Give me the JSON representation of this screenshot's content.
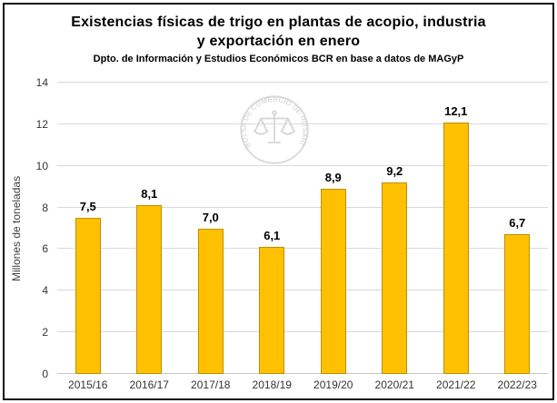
{
  "title": {
    "line1": "Existencias físicas de trigo en plantas de acopio, industria",
    "line2": "y exportación en enero"
  },
  "subtitle": "Dpto. de Información y Estudios Económicos BCR en base a datos de MAGyP",
  "watermark": {
    "text": "BOLSA DE COMERCIO DE ROSARIO"
  },
  "chart_data": {
    "type": "bar",
    "categories": [
      "2015/16",
      "2016/17",
      "2017/18",
      "2018/19",
      "2019/20",
      "2020/21",
      "2021/22",
      "2022/23"
    ],
    "values": [
      7.5,
      8.1,
      7.0,
      6.1,
      8.9,
      9.2,
      12.1,
      6.7
    ],
    "value_labels": [
      "7,5",
      "8,1",
      "7,0",
      "6,1",
      "8,9",
      "9,2",
      "12,1",
      "6,7"
    ],
    "title": "Existencias físicas de trigo en plantas de acopio, industria y exportación en enero",
    "subtitle": "Dpto. de Información y Estudios Económicos BCR en base a datos de MAGyP",
    "xlabel": "",
    "ylabel": "Millones de toneladas",
    "ylim": [
      0,
      14
    ],
    "yticks": [
      0,
      2,
      4,
      6,
      8,
      10,
      12,
      14
    ],
    "grid": true,
    "legend": false,
    "bar_color": "#ffc000",
    "bar_border_color": "#bf8f00",
    "gridline_color": "#d9d9d9"
  }
}
